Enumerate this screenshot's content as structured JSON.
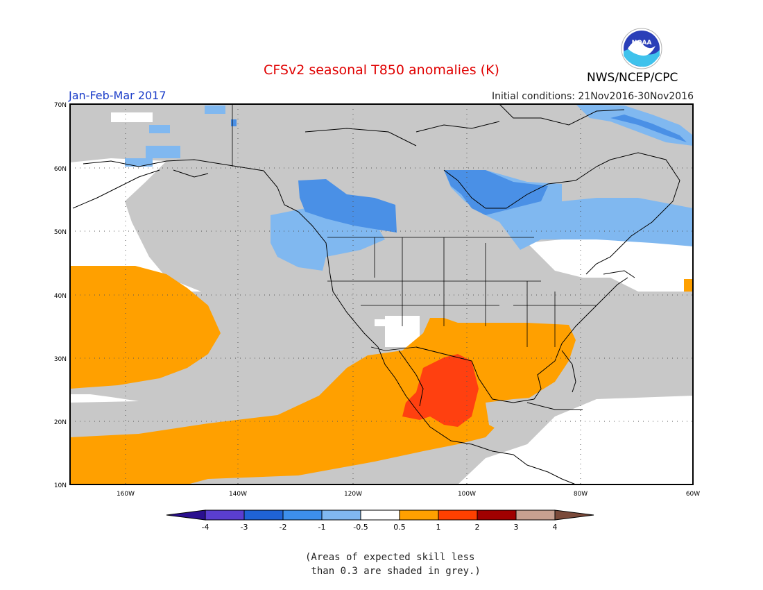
{
  "title": "CFSv2 seasonal T850 anomalies (K)",
  "season": "Jan-Feb-Mar 2017",
  "initial_conditions": "Initial conditions: 21Nov2016-30Nov2016",
  "agency": "NWS/NCEP/CPC",
  "logo_text": "NOAA",
  "note_line1": "(Areas of expected skill less",
  "note_line2": " than 0.3 are shaded in grey.)",
  "map": {
    "lon_range": [
      -172,
      -60
    ],
    "lat_range": [
      10,
      70
    ],
    "lon_ticks": [
      "160W",
      "140W",
      "120W",
      "100W",
      "80W",
      "60W"
    ],
    "lat_ticks": [
      "10N",
      "20N",
      "30N",
      "40N",
      "50N",
      "60N",
      "70N"
    ]
  },
  "colorbar": {
    "labels": [
      "-4",
      "-3",
      "-2",
      "-1",
      "-0.5",
      "0.5",
      "1",
      "2",
      "3",
      "4"
    ],
    "colors": [
      "#2a0f8f",
      "#5a3ed0",
      "#1f63d6",
      "#3d8fec",
      "#80b8f0",
      "#ffffff",
      "#ffa000",
      "#ff4000",
      "#a00000",
      "#c8a090",
      "#7b4a3a"
    ]
  },
  "colors": {
    "low_skill_grey": "#c8c8c8",
    "warm_anomaly": "#ffa000",
    "strong_warm_anomaly": "#ff4010",
    "cool_anomaly": "#4a90e6",
    "weak_cool_anomaly": "#80b8f0"
  }
}
